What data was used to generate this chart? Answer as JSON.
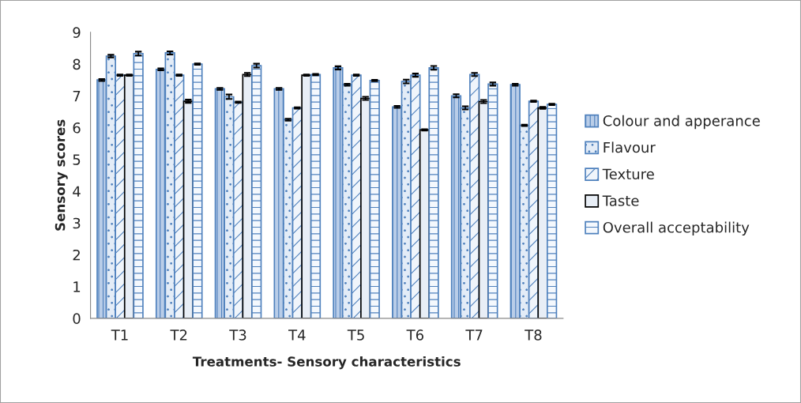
{
  "chart_data": {
    "type": "bar",
    "xlabel": "Treatments- Sensory characteristics",
    "ylabel": "Sensory scores",
    "categories": [
      "T1",
      "T2",
      "T3",
      "T4",
      "T5",
      "T6",
      "T7",
      "T8"
    ],
    "series": [
      {
        "name": "Colour and apperance",
        "color": "#4f81bd",
        "values": [
          7.5,
          7.83,
          7.22,
          7.22,
          7.88,
          6.65,
          7.0,
          7.35
        ],
        "errors": [
          0.03,
          0.03,
          0.03,
          0.03,
          0.05,
          0.03,
          0.05,
          0.03
        ]
      },
      {
        "name": "Flavour",
        "color": "#4f81bd",
        "values": [
          8.25,
          8.35,
          6.97,
          6.25,
          7.35,
          7.45,
          6.62,
          6.07
        ],
        "errors": [
          0.04,
          0.05,
          0.07,
          0.03,
          0.03,
          0.06,
          0.05,
          0.02
        ]
      },
      {
        "name": "Texture",
        "color": "#4f81bd",
        "values": [
          7.65,
          7.65,
          6.8,
          6.62,
          7.65,
          7.65,
          7.67,
          6.83
        ],
        "errors": [
          0.02,
          0.02,
          0.02,
          0.02,
          0.02,
          0.05,
          0.05,
          0.02
        ]
      },
      {
        "name": "Taste",
        "color": "#000000",
        "values": [
          7.65,
          6.83,
          7.67,
          7.65,
          6.92,
          5.93,
          6.82,
          6.62
        ],
        "errors": [
          0.02,
          0.05,
          0.05,
          0.02,
          0.05,
          0.02,
          0.05,
          0.03
        ]
      },
      {
        "name": "Overall acceptability",
        "color": "#4f81bd",
        "values": [
          8.33,
          8.0,
          7.95,
          7.67,
          7.48,
          7.88,
          7.37,
          6.73
        ],
        "errors": [
          0.06,
          0.02,
          0.06,
          0.02,
          0.02,
          0.06,
          0.05,
          0.02
        ]
      }
    ],
    "ylim": [
      0,
      9
    ],
    "yticks": [
      0,
      1,
      2,
      3,
      4,
      5,
      6,
      7,
      8,
      9
    ],
    "grid": false,
    "legend": "right"
  }
}
